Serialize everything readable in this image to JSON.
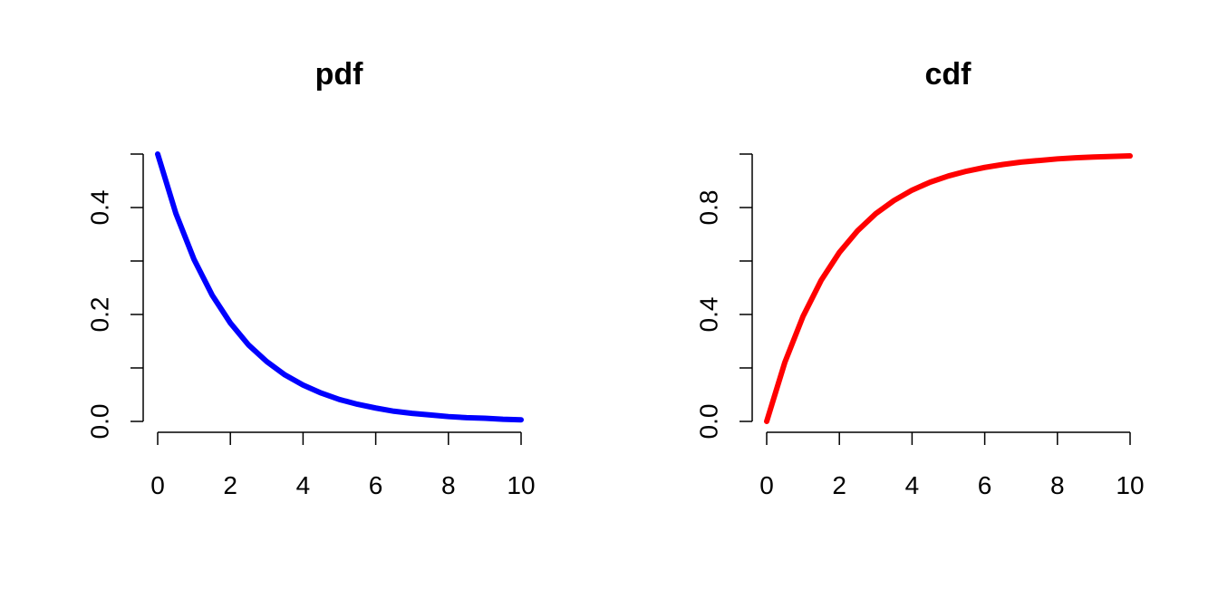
{
  "chart_data": [
    {
      "type": "line",
      "title": "pdf",
      "xlabel": "",
      "ylabel": "",
      "xlim": [
        0,
        10
      ],
      "ylim": [
        0,
        0.5
      ],
      "x_ticks": [
        0,
        2,
        4,
        6,
        8,
        10
      ],
      "x_tick_labels": [
        "0",
        "2",
        "4",
        "6",
        "8",
        "10"
      ],
      "y_ticks": [
        0,
        0.1,
        0.2,
        0.3,
        0.4,
        0.5
      ],
      "y_tick_labels": [
        "0.0",
        "",
        "0.2",
        "",
        "0.4",
        ""
      ],
      "grid": false,
      "series": [
        {
          "color": "#0000ff",
          "x": [
            0,
            0.5,
            1,
            1.5,
            2,
            2.5,
            3,
            3.5,
            4,
            4.5,
            5,
            5.5,
            6,
            6.5,
            7,
            7.5,
            8,
            8.5,
            9,
            9.5,
            10
          ],
          "y": [
            0.5,
            0.389,
            0.303,
            0.236,
            0.184,
            0.143,
            0.112,
            0.087,
            0.068,
            0.053,
            0.041,
            0.032,
            0.025,
            0.019,
            0.015,
            0.012,
            0.009,
            0.007,
            0.006,
            0.004,
            0.003
          ]
        }
      ]
    },
    {
      "type": "line",
      "title": "cdf",
      "xlabel": "",
      "ylabel": "",
      "xlim": [
        0,
        10
      ],
      "ylim": [
        0,
        1
      ],
      "x_ticks": [
        0,
        2,
        4,
        6,
        8,
        10
      ],
      "x_tick_labels": [
        "0",
        "2",
        "4",
        "6",
        "8",
        "10"
      ],
      "y_ticks": [
        0,
        0.2,
        0.4,
        0.6,
        0.8,
        1.0
      ],
      "y_tick_labels": [
        "0.0",
        "",
        "0.4",
        "",
        "0.8",
        ""
      ],
      "grid": false,
      "series": [
        {
          "color": "#ff0000",
          "x": [
            0,
            0.5,
            1,
            1.5,
            2,
            2.5,
            3,
            3.5,
            4,
            4.5,
            5,
            5.5,
            6,
            6.5,
            7,
            7.5,
            8,
            8.5,
            9,
            9.5,
            10
          ],
          "y": [
            0,
            0.221,
            0.393,
            0.528,
            0.632,
            0.713,
            0.777,
            0.826,
            0.865,
            0.895,
            0.918,
            0.936,
            0.95,
            0.961,
            0.97,
            0.976,
            0.982,
            0.986,
            0.989,
            0.991,
            0.993
          ]
        }
      ]
    }
  ]
}
